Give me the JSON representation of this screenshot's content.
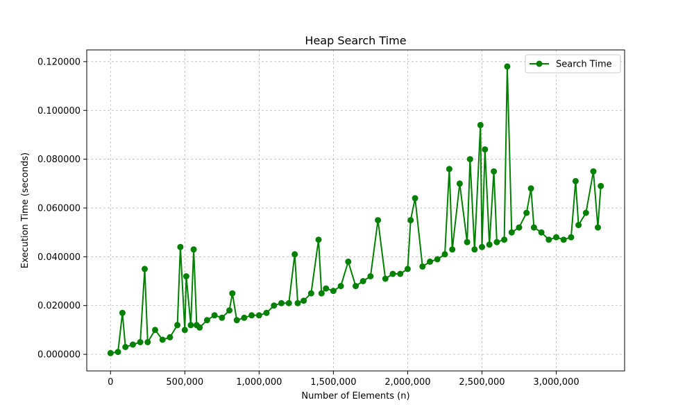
{
  "chart_data": {
    "type": "line",
    "title": "Heap Search Time",
    "xlabel": "Number of Elements (n)",
    "ylabel": "Execution Time (seconds)",
    "xlim": [
      -160000,
      3460000
    ],
    "ylim": [
      -0.0068,
      0.1248
    ],
    "xticks": [
      0,
      500000,
      1000000,
      1500000,
      2000000,
      2500000,
      3000000
    ],
    "xtick_labels": [
      "0",
      "500,000",
      "1,000,000",
      "1,500,000",
      "2,000,000",
      "2,500,000",
      "3,000,000"
    ],
    "yticks": [
      0,
      0.02,
      0.04,
      0.06,
      0.08,
      0.1,
      0.12
    ],
    "ytick_labels": [
      "0.000000",
      "0.020000",
      "0.040000",
      "0.060000",
      "0.080000",
      "0.100000",
      "0.120000"
    ],
    "grid": true,
    "legend_position": "top-right",
    "series": [
      {
        "name": "Search Time",
        "color": "#008000",
        "marker": "circle",
        "x": [
          0,
          50000,
          80000,
          100000,
          150000,
          200000,
          230000,
          250000,
          300000,
          350000,
          400000,
          450000,
          470000,
          500000,
          510000,
          540000,
          560000,
          580000,
          600000,
          650000,
          700000,
          750000,
          800000,
          820000,
          850000,
          900000,
          950000,
          1000000,
          1050000,
          1100000,
          1150000,
          1200000,
          1240000,
          1260000,
          1300000,
          1350000,
          1400000,
          1420000,
          1450000,
          1500000,
          1550000,
          1600000,
          1650000,
          1700000,
          1750000,
          1800000,
          1850000,
          1900000,
          1950000,
          2000000,
          2020000,
          2050000,
          2100000,
          2150000,
          2200000,
          2250000,
          2280000,
          2300000,
          2350000,
          2400000,
          2420000,
          2450000,
          2490000,
          2500000,
          2520000,
          2550000,
          2580000,
          2600000,
          2650000,
          2670000,
          2700000,
          2750000,
          2800000,
          2830000,
          2850000,
          2900000,
          2950000,
          3000000,
          3050000,
          3100000,
          3130000,
          3150000,
          3200000,
          3250000,
          3280000,
          3300000
        ],
        "values": [
          0.0005,
          0.001,
          0.017,
          0.003,
          0.004,
          0.005,
          0.035,
          0.005,
          0.01,
          0.006,
          0.007,
          0.012,
          0.044,
          0.01,
          0.032,
          0.012,
          0.043,
          0.012,
          0.011,
          0.014,
          0.016,
          0.015,
          0.018,
          0.025,
          0.014,
          0.015,
          0.016,
          0.016,
          0.017,
          0.02,
          0.021,
          0.021,
          0.041,
          0.021,
          0.022,
          0.025,
          0.047,
          0.025,
          0.027,
          0.026,
          0.028,
          0.038,
          0.028,
          0.03,
          0.032,
          0.055,
          0.031,
          0.033,
          0.033,
          0.035,
          0.055,
          0.064,
          0.036,
          0.038,
          0.039,
          0.041,
          0.076,
          0.043,
          0.07,
          0.046,
          0.08,
          0.043,
          0.094,
          0.044,
          0.084,
          0.045,
          0.075,
          0.046,
          0.047,
          0.118,
          0.05,
          0.052,
          0.058,
          0.068,
          0.052,
          0.05,
          0.047,
          0.048,
          0.047,
          0.048,
          0.071,
          0.053,
          0.058,
          0.075,
          0.052,
          0.069
        ]
      }
    ]
  }
}
